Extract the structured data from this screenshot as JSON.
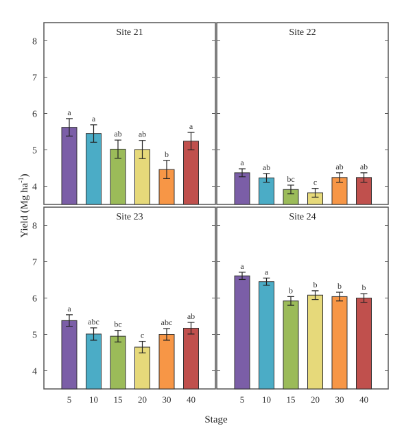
{
  "chart_data": [
    {
      "type": "bar",
      "title": "Site 21",
      "categories": [
        "5",
        "10",
        "15",
        "20",
        "30",
        "40"
      ],
      "values": [
        5.62,
        5.45,
        5.02,
        5.01,
        4.46,
        5.24
      ],
      "errors": [
        0.24,
        0.24,
        0.25,
        0.25,
        0.25,
        0.24
      ],
      "letters": [
        "a",
        "a",
        "ab",
        "ab",
        "b",
        "a"
      ],
      "ylim": [
        3.5,
        8.5
      ]
    },
    {
      "type": "bar",
      "title": "Site 22",
      "categories": [
        "5",
        "10",
        "15",
        "20",
        "30",
        "40"
      ],
      "values": [
        4.37,
        4.23,
        3.91,
        3.82,
        4.24,
        4.24
      ],
      "errors": [
        0.11,
        0.12,
        0.12,
        0.12,
        0.13,
        0.13
      ],
      "letters": [
        "a",
        "ab",
        "bc",
        "c",
        "ab",
        "ab"
      ],
      "ylim": [
        3.5,
        8.5
      ]
    },
    {
      "type": "bar",
      "title": "Site 23",
      "categories": [
        "5",
        "10",
        "15",
        "20",
        "30",
        "40"
      ],
      "values": [
        5.38,
        5.01,
        4.95,
        4.65,
        5.0,
        5.17
      ],
      "errors": [
        0.16,
        0.17,
        0.16,
        0.16,
        0.16,
        0.16
      ],
      "letters": [
        "a",
        "abc",
        "bc",
        "c",
        "abc",
        "ab"
      ],
      "ylim": [
        3.5,
        8.5
      ]
    },
    {
      "type": "bar",
      "title": "Site 24",
      "categories": [
        "5",
        "10",
        "15",
        "20",
        "30",
        "40"
      ],
      "values": [
        6.61,
        6.45,
        5.92,
        6.08,
        6.04,
        6.0
      ],
      "errors": [
        0.1,
        0.1,
        0.12,
        0.12,
        0.12,
        0.12
      ],
      "letters": [
        "a",
        "a",
        "b",
        "b",
        "b",
        "b"
      ],
      "ylim": [
        3.5,
        8.5
      ]
    }
  ],
  "yticks": [
    4,
    5,
    6,
    7,
    8
  ],
  "ylabel": "Yield (Mg ha",
  "ylabel_sup": "-1",
  "ylabel_close": ")",
  "xlabel": "Stage",
  "colors": [
    "#7b5ea7",
    "#4bacc6",
    "#9bbb59",
    "#e6d97a",
    "#f79646",
    "#c0504d"
  ],
  "grid": false
}
